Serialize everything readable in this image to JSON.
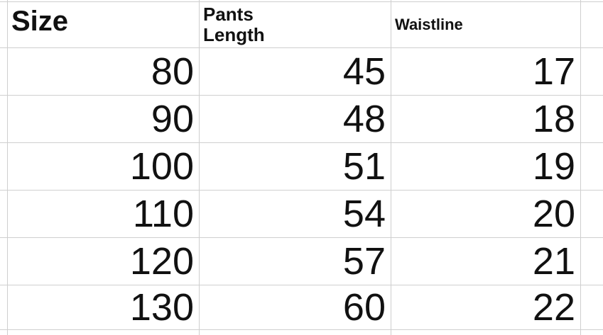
{
  "page": {
    "background_color": "#ffffff",
    "grid_line_color": "#cfcfcf",
    "text_color": "#111111"
  },
  "table": {
    "headers": [
      {
        "id": "size",
        "label": "Size"
      },
      {
        "id": "pants_length",
        "label": "Pants\nLength"
      },
      {
        "id": "waistline",
        "label": "Waistline"
      }
    ],
    "rows": [
      {
        "size": "80",
        "pants_length": "45",
        "waistline": "17"
      },
      {
        "size": "90",
        "pants_length": "48",
        "waistline": "18"
      },
      {
        "size": "100",
        "pants_length": "51",
        "waistline": "19"
      },
      {
        "size": "110",
        "pants_length": "54",
        "waistline": "20"
      },
      {
        "size": "120",
        "pants_length": "57",
        "waistline": "21"
      },
      {
        "size": "130",
        "pants_length": "60",
        "waistline": "22"
      }
    ]
  }
}
